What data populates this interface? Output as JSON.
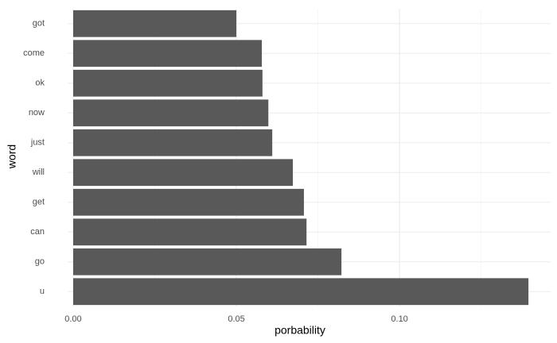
{
  "chart_data": {
    "type": "barh",
    "categories": [
      "got",
      "come",
      "ok",
      "now",
      "just",
      "will",
      "get",
      "can",
      "go",
      "u"
    ],
    "values": [
      0.05,
      0.0578,
      0.058,
      0.0598,
      0.061,
      0.0673,
      0.0707,
      0.0715,
      0.0822,
      0.1395
    ],
    "color": "#595959",
    "xlabel": "porbability",
    "ylabel": "word",
    "xlim": [
      -0.0017,
      0.1463
    ],
    "xticks": [
      {
        "value": 0,
        "label": "0.00"
      },
      {
        "value": 0.05,
        "label": "0.05"
      },
      {
        "value": 0.1,
        "label": "0.10"
      }
    ],
    "minor_xticks": [
      0.025,
      0.075,
      0.125
    ],
    "grid": true
  }
}
